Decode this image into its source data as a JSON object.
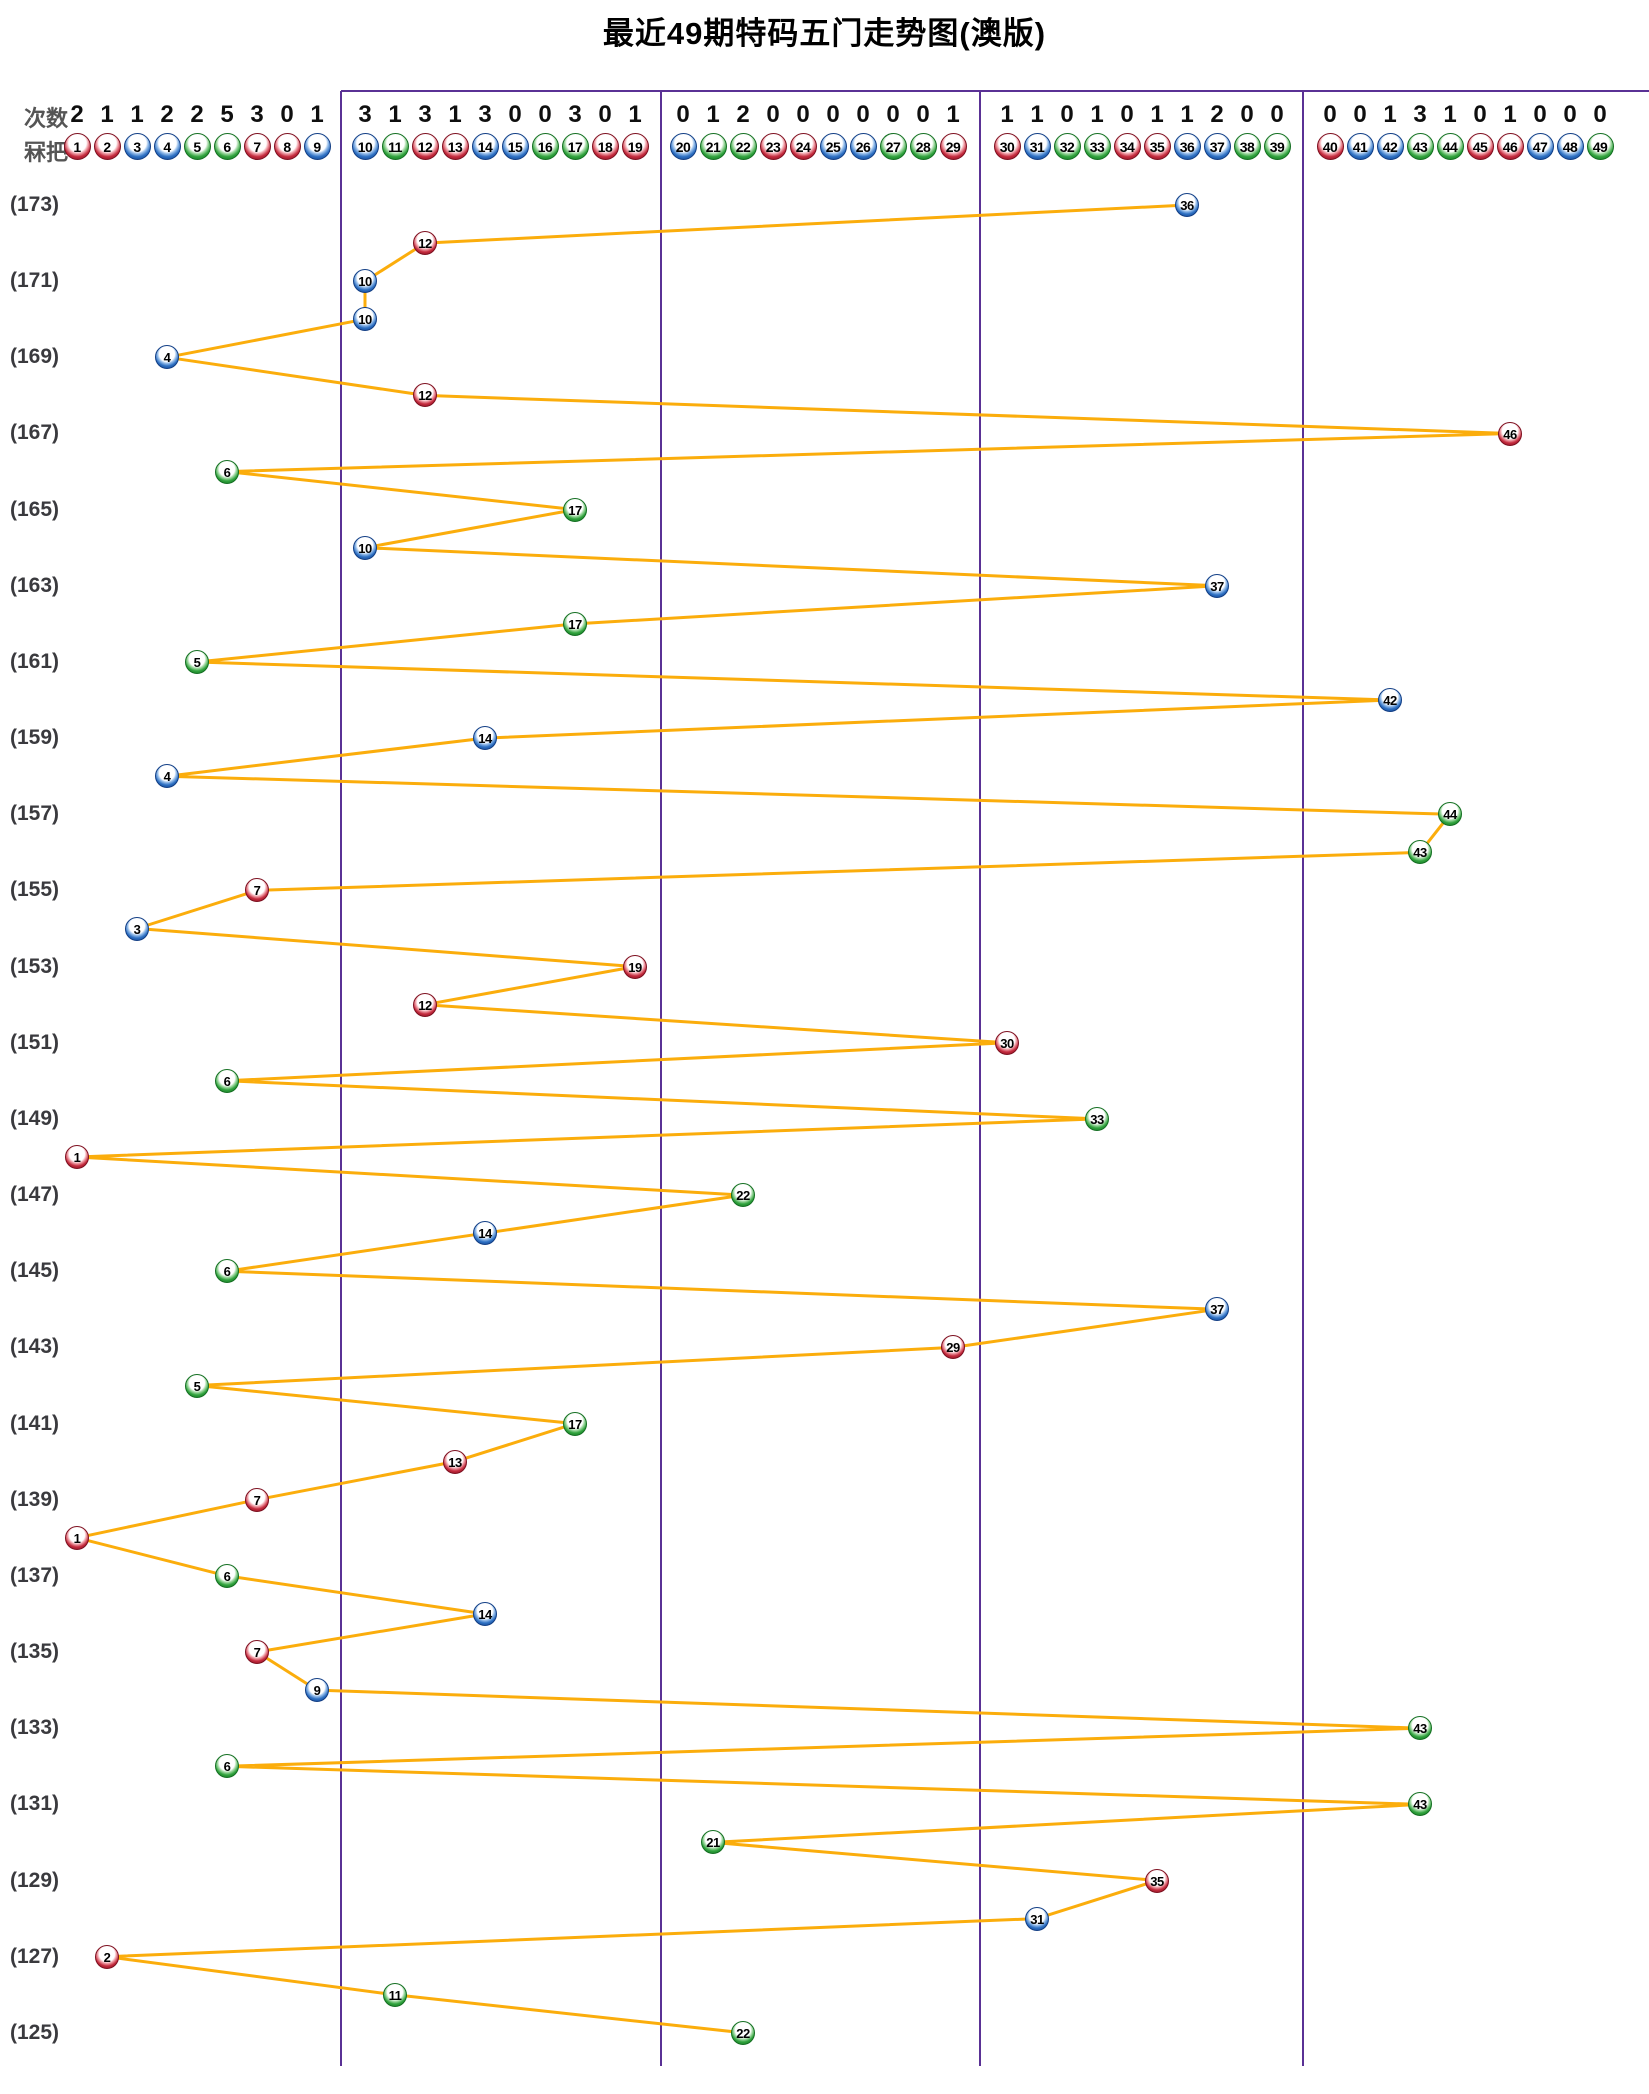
{
  "title": "最近49期特码五门走势图(澳版)",
  "header": {
    "counts_label": "次数",
    "balls_label": "冧把",
    "counts": [
      2,
      1,
      1,
      2,
      2,
      5,
      3,
      0,
      1,
      3,
      1,
      3,
      1,
      3,
      0,
      0,
      3,
      0,
      1,
      0,
      1,
      2,
      0,
      0,
      0,
      0,
      0,
      0,
      1,
      1,
      1,
      0,
      1,
      0,
      1,
      1,
      2,
      0,
      0,
      0,
      0,
      1,
      3,
      1,
      0,
      1,
      0,
      0,
      0
    ],
    "ball_numbers": [
      1,
      2,
      3,
      4,
      5,
      6,
      7,
      8,
      9,
      10,
      11,
      12,
      13,
      14,
      15,
      16,
      17,
      18,
      19,
      20,
      21,
      22,
      23,
      24,
      25,
      26,
      27,
      28,
      29,
      30,
      31,
      32,
      33,
      34,
      35,
      36,
      37,
      38,
      39,
      40,
      41,
      42,
      43,
      44,
      45,
      46,
      47,
      48,
      49
    ]
  },
  "ball_color_groups": {
    "red": [
      1,
      2,
      7,
      8,
      12,
      13,
      18,
      19,
      23,
      24,
      29,
      30,
      34,
      35,
      40,
      45,
      46
    ],
    "blue": [
      3,
      4,
      9,
      10,
      14,
      15,
      20,
      25,
      26,
      31,
      36,
      37,
      41,
      42,
      47,
      48
    ],
    "green": [
      5,
      6,
      11,
      16,
      17,
      21,
      22,
      27,
      28,
      32,
      33,
      38,
      39,
      43,
      44,
      49
    ]
  },
  "colors": {
    "red": "#C42A3D",
    "red_dark": "#7D1020",
    "red_light": "#F2A9B0",
    "blue": "#2C6FC2",
    "blue_dark": "#123E85",
    "blue_light": "#9DC2EC",
    "green": "#2FA23C",
    "green_dark": "#146F22",
    "green_light": "#A8DCA9",
    "line": "#FBAD0C",
    "divider": "#5A3195",
    "row_label": "#3A3A3E",
    "header_label": "#555555",
    "count_text": "#0F0F0F",
    "title_text": "#000000"
  },
  "chart_data": {
    "type": "line",
    "title": "最近49期特码五门走势图(澳版)",
    "x_axis": {
      "label": "冧把",
      "min": 1,
      "max": 49,
      "groups": [
        [
          1,
          9
        ],
        [
          10,
          19
        ],
        [
          20,
          29
        ],
        [
          30,
          39
        ],
        [
          40,
          49
        ]
      ]
    },
    "y_axis": {
      "top_period": 173,
      "bottom_period": 125,
      "label_step": 2,
      "labels": [
        "(173)",
        "(171)",
        "(169)",
        "(167)",
        "(165)",
        "(163)",
        "(161)",
        "(159)",
        "(157)",
        "(155)",
        "(153)",
        "(151)",
        "(149)",
        "(147)",
        "(145)",
        "(143)",
        "(141)",
        "(139)",
        "(137)",
        "(135)",
        "(133)",
        "(131)",
        "(129)",
        "(127)",
        "(125)"
      ]
    },
    "legend": "none",
    "grid": "vertical-group-dividers",
    "periods": [
      {
        "period": 173,
        "number": 36
      },
      {
        "period": 172,
        "number": 12
      },
      {
        "period": 171,
        "number": 10
      },
      {
        "period": 170,
        "number": 10
      },
      {
        "period": 169,
        "number": 4
      },
      {
        "period": 168,
        "number": 12
      },
      {
        "period": 167,
        "number": 46
      },
      {
        "period": 166,
        "number": 6
      },
      {
        "period": 165,
        "number": 17
      },
      {
        "period": 164,
        "number": 10
      },
      {
        "period": 163,
        "number": 37
      },
      {
        "period": 162,
        "number": 17
      },
      {
        "period": 161,
        "number": 5
      },
      {
        "period": 160,
        "number": 42
      },
      {
        "period": 159,
        "number": 14
      },
      {
        "period": 158,
        "number": 4
      },
      {
        "period": 157,
        "number": 44
      },
      {
        "period": 156,
        "number": 43
      },
      {
        "period": 155,
        "number": 7
      },
      {
        "period": 154,
        "number": 3
      },
      {
        "period": 153,
        "number": 19
      },
      {
        "period": 152,
        "number": 12
      },
      {
        "period": 151,
        "number": 30
      },
      {
        "period": 150,
        "number": 6
      },
      {
        "period": 149,
        "number": 33
      },
      {
        "period": 148,
        "number": 1
      },
      {
        "period": 147,
        "number": 22
      },
      {
        "period": 146,
        "number": 14
      },
      {
        "period": 145,
        "number": 6
      },
      {
        "period": 144,
        "number": 37
      },
      {
        "period": 143,
        "number": 29
      },
      {
        "period": 142,
        "number": 5
      },
      {
        "period": 141,
        "number": 17
      },
      {
        "period": 140,
        "number": 13
      },
      {
        "period": 139,
        "number": 7
      },
      {
        "period": 138,
        "number": 1
      },
      {
        "period": 137,
        "number": 6
      },
      {
        "period": 136,
        "number": 14
      },
      {
        "period": 135,
        "number": 7
      },
      {
        "period": 134,
        "number": 9
      },
      {
        "period": 133,
        "number": 43
      },
      {
        "period": 132,
        "number": 6
      },
      {
        "period": 131,
        "number": 43
      },
      {
        "period": 130,
        "number": 21
      },
      {
        "period": 129,
        "number": 35
      },
      {
        "period": 128,
        "number": 31
      },
      {
        "period": 127,
        "number": 2
      },
      {
        "period": 126,
        "number": 11
      },
      {
        "period": 125,
        "number": 22
      }
    ]
  }
}
